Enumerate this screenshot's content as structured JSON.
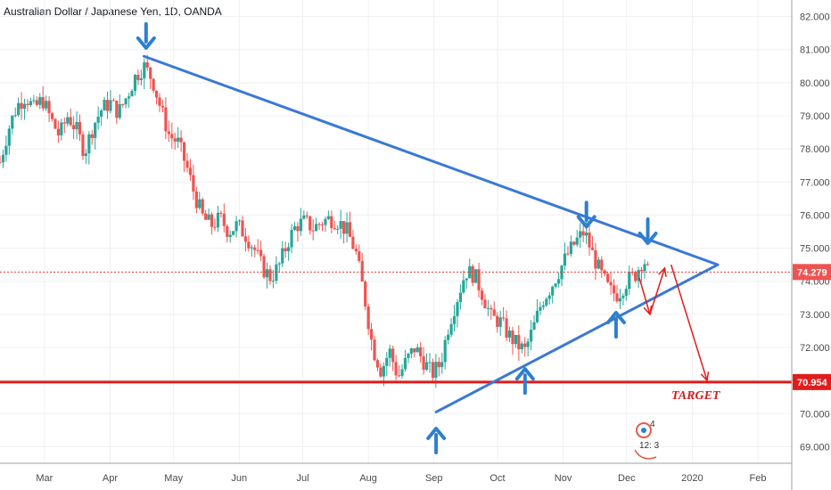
{
  "header": {
    "title": "Australian Dollar / Japanese Yen, 1D, OANDA"
  },
  "colors": {
    "up": "#26a69a",
    "down": "#ef5350",
    "trend": "#3a78d6",
    "support": "#e21b1b",
    "arrow_blue": "#2f7fd0",
    "projection": "#e21b1b",
    "grid": "#eef0f3"
  },
  "chart_data": {
    "type": "candlestick",
    "y_ticks": [
      "82.000",
      "81.000",
      "80.000",
      "79.000",
      "78.000",
      "77.000",
      "76.000",
      "75.000",
      "74.000",
      "73.000",
      "72.000",
      "71.000",
      "70.000",
      "69.000"
    ],
    "ylim": [
      68.5,
      82.5
    ],
    "x_ticks": [
      {
        "label": "Mar",
        "day": 59
      },
      {
        "label": "Apr",
        "day": 90
      },
      {
        "label": "May",
        "day": 120
      },
      {
        "label": "Jun",
        "day": 151
      },
      {
        "label": "Jul",
        "day": 181
      },
      {
        "label": "Aug",
        "day": 212
      },
      {
        "label": "Sep",
        "day": 243
      },
      {
        "label": "Oct",
        "day": 273
      },
      {
        "label": "Nov",
        "day": 304
      },
      {
        "label": "Dec",
        "day": 334
      },
      {
        "label": "2020",
        "day": 365
      },
      {
        "label": "Feb",
        "day": 396
      }
    ],
    "xlim": [
      38,
      412
    ],
    "price_path": [
      [
        38,
        77.6
      ],
      [
        42,
        78.6
      ],
      [
        46,
        79.3
      ],
      [
        50,
        79.6
      ],
      [
        54,
        79.2
      ],
      [
        58,
        79.5
      ],
      [
        62,
        78.9
      ],
      [
        66,
        78.4
      ],
      [
        70,
        79.0
      ],
      [
        74,
        78.6
      ],
      [
        78,
        77.9
      ],
      [
        82,
        78.7
      ],
      [
        86,
        79.2
      ],
      [
        90,
        79.4
      ],
      [
        94,
        79.1
      ],
      [
        98,
        79.6
      ],
      [
        102,
        80.2
      ],
      [
        106,
        80.5
      ],
      [
        110,
        80.1
      ],
      [
        114,
        79.2
      ],
      [
        118,
        78.4
      ],
      [
        122,
        78.2
      ],
      [
        126,
        77.5
      ],
      [
        130,
        76.6
      ],
      [
        134,
        75.9
      ],
      [
        138,
        75.7
      ],
      [
        142,
        75.9
      ],
      [
        146,
        75.5
      ],
      [
        150,
        75.7
      ],
      [
        154,
        75.4
      ],
      [
        158,
        75.0
      ],
      [
        162,
        74.4
      ],
      [
        166,
        74.1
      ],
      [
        170,
        74.5
      ],
      [
        174,
        75.2
      ],
      [
        178,
        75.7
      ],
      [
        182,
        75.8
      ],
      [
        186,
        75.6
      ],
      [
        190,
        75.8
      ],
      [
        194,
        75.9
      ],
      [
        198,
        75.8
      ],
      [
        202,
        75.5
      ],
      [
        206,
        74.9
      ],
      [
        210,
        73.6
      ],
      [
        214,
        72.0
      ],
      [
        218,
        71.3
      ],
      [
        222,
        71.9
      ],
      [
        226,
        71.1
      ],
      [
        230,
        71.6
      ],
      [
        234,
        72.0
      ],
      [
        238,
        71.6
      ],
      [
        242,
        71.2
      ],
      [
        246,
        71.5
      ],
      [
        250,
        72.7
      ],
      [
        254,
        73.5
      ],
      [
        258,
        74.3
      ],
      [
        262,
        74.2
      ],
      [
        266,
        73.6
      ],
      [
        270,
        72.9
      ],
      [
        274,
        72.8
      ],
      [
        278,
        72.4
      ],
      [
        282,
        72.1
      ],
      [
        286,
        71.9
      ],
      [
        290,
        72.6
      ],
      [
        294,
        73.4
      ],
      [
        298,
        73.8
      ],
      [
        302,
        74.3
      ],
      [
        306,
        74.8
      ],
      [
        310,
        75.2
      ],
      [
        314,
        75.5
      ],
      [
        318,
        74.8
      ],
      [
        322,
        74.2
      ],
      [
        326,
        73.7
      ],
      [
        330,
        73.6
      ],
      [
        334,
        74.0
      ],
      [
        338,
        74.2
      ],
      [
        342,
        74.7
      ],
      [
        344,
        74.3
      ]
    ],
    "last_price": 74.279,
    "support_level": 70.954,
    "upper_trendline": [
      [
        106,
        80.8
      ],
      [
        377,
        74.5
      ]
    ],
    "lower_trendline": [
      [
        244,
        70.05
      ],
      [
        377,
        74.5
      ]
    ],
    "projection_path": [
      [
        340,
        74.1
      ],
      [
        345,
        73.0
      ],
      [
        352,
        74.4
      ],
      [
        355,
        74.5
      ],
      [
        372,
        71.0
      ]
    ],
    "down_arrows": [
      [
        107,
        81.4
      ],
      [
        315,
        76.0
      ],
      [
        344,
        75.5
      ]
    ],
    "up_arrows": [
      [
        244,
        69.2
      ],
      [
        286,
        71.0
      ],
      [
        329,
        72.7
      ]
    ],
    "annotation": "TARGET",
    "badge": {
      "top": "4",
      "bottom": "12: 3"
    }
  }
}
